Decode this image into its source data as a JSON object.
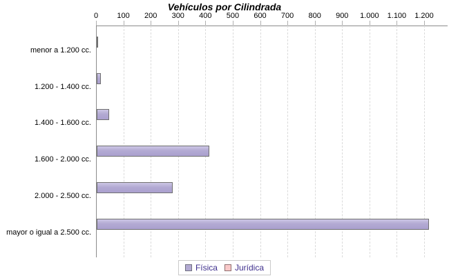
{
  "title": "Vehículos por Cilindrada",
  "chart_data": {
    "type": "bar",
    "orientation": "horizontal",
    "title": "Vehículos por Cilindrada",
    "categories": [
      "menor a 1.200 cc.",
      "1.200 - 1.400 cc.",
      "1.400 - 1.600 cc.",
      "1.600 - 2.000 cc.",
      "2.000 - 2.500 cc.",
      "mayor o igual a 2.500 cc."
    ],
    "series": [
      {
        "name": "Física",
        "color": "#b3aad3",
        "values": [
          5,
          15,
          45,
          413,
          277,
          1215
        ]
      },
      {
        "name": "Jurídica",
        "color": "#f9c9c9",
        "values": [
          0,
          0,
          0,
          0,
          0,
          0
        ]
      }
    ],
    "x_ticks": [
      {
        "label": "0",
        "value": 0
      },
      {
        "label": "100",
        "value": 100
      },
      {
        "label": "200",
        "value": 200
      },
      {
        "label": "300",
        "value": 300
      },
      {
        "label": "400",
        "value": 400
      },
      {
        "label": "500",
        "value": 500
      },
      {
        "label": "600",
        "value": 600
      },
      {
        "label": "700",
        "value": 700
      },
      {
        "label": "800",
        "value": 800
      },
      {
        "label": "900",
        "value": 900
      },
      {
        "label": "1.000",
        "value": 1000
      },
      {
        "label": "1.100",
        "value": 1100
      },
      {
        "label": "1.200",
        "value": 1200
      }
    ],
    "xlim": [
      0,
      1285
    ],
    "grid": "vertical-dashed",
    "legend_position": "bottom",
    "axis_position": "top"
  },
  "legend": {
    "items": [
      {
        "label": "Física",
        "color": "#b3aad3"
      },
      {
        "label": "Jurídica",
        "color": "#f9c9c9"
      }
    ]
  },
  "colors": {
    "bar_fill": "#b3aad3",
    "bar_border": "#6f6f6f",
    "axis": "#8a8a8a",
    "gridline": "#dadada",
    "legend_text": "#3d2e8c"
  }
}
